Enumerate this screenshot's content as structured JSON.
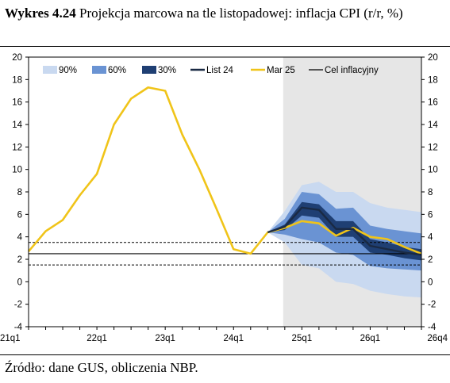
{
  "figure": {
    "number": "Wykres 4.24",
    "title_rest": " Projekcja marcowa na tle listopadowej: inflacja CPI (r/r, %)",
    "source": "Źródło: dane GUS, obliczenia NBP."
  },
  "chart_data": {
    "type": "line",
    "title": "Projekcja marcowa na tle listopadowej: inflacja CPI (r/r, %)",
    "ylim": [
      -4,
      20
    ],
    "yticks": [
      -4,
      -2,
      0,
      2,
      4,
      6,
      8,
      10,
      12,
      14,
      16,
      18,
      20
    ],
    "ytick_labels": [
      "-4",
      "-2",
      "0",
      "2",
      "4",
      "6",
      "8",
      "10",
      "12",
      "14",
      "16",
      "18",
      "20"
    ],
    "xticks": [
      "21q1",
      "22q1",
      "23q1",
      "24q1",
      "25q1",
      "26q1",
      "26q4"
    ],
    "x_periods": [
      "21q1",
      "21q2",
      "21q3",
      "21q4",
      "22q1",
      "22q2",
      "22q3",
      "22q4",
      "23q1",
      "23q2",
      "23q3",
      "23q4",
      "24q1",
      "24q2",
      "24q3",
      "24q4",
      "25q1",
      "25q2",
      "25q3",
      "25q4",
      "26q1",
      "26q2",
      "26q3",
      "26q4"
    ],
    "projection_start": "24q4",
    "legend": [
      {
        "key": "p90",
        "label": "90%",
        "type": "patch",
        "color": "#c9d9f0"
      },
      {
        "key": "p60",
        "label": "60%",
        "type": "patch",
        "color": "#6a93d3"
      },
      {
        "key": "p30",
        "label": "30%",
        "type": "patch",
        "color": "#1f3f73"
      },
      {
        "key": "list24",
        "label": "List 24",
        "type": "line",
        "color": "#1a2a44"
      },
      {
        "key": "mar25",
        "label": "Mar 25",
        "type": "line",
        "color": "#f0c419"
      },
      {
        "key": "target",
        "label": "Cel inflacyjny",
        "type": "line",
        "color": "#000000"
      }
    ],
    "colors": {
      "shade": "#e6e6e6",
      "p90": "#c9d9f0",
      "p60": "#6a93d3",
      "p30": "#1f3f73",
      "list24": "#1a2a44",
      "mar25": "#f0c419",
      "target": "#000000"
    },
    "target": {
      "value": 2.5,
      "band": [
        1.5,
        3.5
      ]
    },
    "series": [
      {
        "name": "Mar 25",
        "key": "mar25",
        "x_start": "21q1",
        "values": [
          2.7,
          4.5,
          5.5,
          7.7,
          9.6,
          14.0,
          16.3,
          17.3,
          17.0,
          13.1,
          10.0,
          6.5,
          2.9,
          2.5,
          4.4,
          4.8,
          5.4,
          5.2,
          4.1,
          4.8,
          4.0,
          3.8,
          3.1,
          2.5
        ]
      },
      {
        "name": "List 24",
        "key": "list24",
        "x_start": "24q3",
        "values": [
          4.4,
          4.9,
          6.6,
          6.4,
          4.7,
          4.7,
          3.2,
          2.9,
          2.6,
          2.4
        ]
      }
    ],
    "fan": {
      "x_start": "24q3",
      "p90_low": [
        4.4,
        3.5,
        1.5,
        1.2,
        0.0,
        -0.2,
        -0.8,
        -1.1,
        -1.3,
        -1.4
      ],
      "p90_high": [
        4.4,
        6.3,
        8.6,
        8.9,
        8.0,
        8.0,
        7.0,
        6.6,
        6.4,
        6.2
      ],
      "p60_low": [
        4.4,
        4.2,
        3.8,
        3.5,
        2.6,
        2.4,
        1.4,
        1.2,
        1.1,
        1.0
      ],
      "p60_high": [
        4.4,
        5.6,
        8.0,
        7.8,
        6.5,
        6.6,
        5.0,
        4.7,
        4.5,
        4.3
      ],
      "p30_low": [
        4.4,
        4.6,
        5.9,
        5.7,
        4.0,
        4.0,
        2.6,
        2.4,
        2.1,
        1.9
      ],
      "p30_high": [
        4.4,
        5.1,
        7.1,
        6.9,
        5.4,
        5.4,
        3.8,
        3.5,
        3.1,
        2.9
      ]
    }
  }
}
